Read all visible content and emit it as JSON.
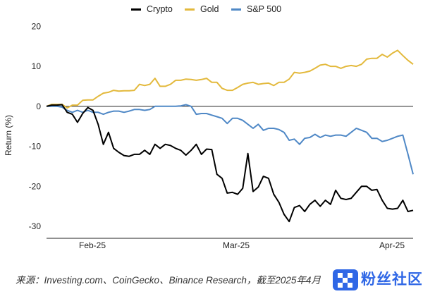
{
  "chart_data": {
    "type": "line",
    "title": "",
    "xlabel": "",
    "ylabel": "Return (%)",
    "ylim": [
      -33,
      22
    ],
    "x_tick_labels": [
      "Feb-25",
      "Mar-25",
      "Apr-25"
    ],
    "y_ticks": [
      20,
      10,
      0,
      -10,
      -20,
      -30
    ],
    "legend_position": "top-center",
    "grid": false,
    "zero_line": true,
    "series": [
      {
        "name": "Crypto",
        "color": "#000000",
        "values": [
          0,
          0.3,
          0.3,
          0.4,
          -1.5,
          -2,
          -4,
          -1.8,
          -0.3,
          -1,
          -4.5,
          -9.5,
          -6.5,
          -10.5,
          -11.5,
          -12.3,
          -12.5,
          -12,
          -12,
          -11,
          -12,
          -9.5,
          -10.5,
          -9.5,
          -9.8,
          -10.5,
          -11,
          -12.2,
          -11,
          -9.5,
          -12,
          -10.7,
          -10.8,
          -17,
          -18,
          -21.7,
          -21.5,
          -22,
          -20.5,
          -11.8,
          -21.3,
          -20.2,
          -17.5,
          -18,
          -22,
          -24,
          -27,
          -28.8,
          -25.3,
          -24.8,
          -26.3,
          -24.5,
          -23.5,
          -25,
          -23.5,
          -24.5,
          -21,
          -23,
          -23.3,
          -23,
          -21.5,
          -20,
          -20,
          -21,
          -20.8,
          -23.5,
          -25.5,
          -25.7,
          -25.5,
          -23.5,
          -26.3,
          -26
        ]
      },
      {
        "name": "Gold",
        "color": "#e3b93c",
        "values": [
          0,
          0.5,
          0.5,
          0.5,
          -0.4,
          0.3,
          0.3,
          1.5,
          1.6,
          1.6,
          2.5,
          3.3,
          3.5,
          4,
          3.8,
          3.9,
          3.9,
          4,
          5.5,
          5.2,
          5.5,
          7,
          5,
          5,
          5.5,
          6.5,
          6.5,
          6.8,
          6.7,
          6.5,
          6.7,
          7,
          6,
          6,
          4.5,
          4,
          4,
          4.7,
          5.5,
          5.8,
          6,
          5.5,
          5.7,
          5.8,
          5.2,
          6,
          6,
          6.8,
          8.5,
          8.3,
          8.5,
          8.8,
          9.5,
          10.3,
          10.5,
          10,
          10,
          9.5,
          10,
          10.2,
          10,
          10.5,
          11.8,
          12,
          12,
          13,
          12.3,
          13.3,
          14,
          12.7,
          11.5,
          10.5
        ]
      },
      {
        "name": "S&P 500",
        "color": "#4f88c6",
        "values": [
          0,
          0,
          0,
          -0.2,
          -1,
          -1.5,
          -1,
          -1.5,
          -1,
          -1.5,
          -1.5,
          -2,
          -1.5,
          -1.2,
          -1.2,
          -1.5,
          -1.2,
          -0.8,
          -0.8,
          -1,
          -0.8,
          0,
          0,
          0,
          0,
          0,
          0.1,
          0.4,
          0,
          -2,
          -1.8,
          -1.8,
          -2.2,
          -2.6,
          -3,
          -4.3,
          -3,
          -3,
          -3.5,
          -4.5,
          -5.5,
          -4.5,
          -6,
          -5.5,
          -5.5,
          -5.8,
          -6.5,
          -8.5,
          -8.2,
          -9.5,
          -8,
          -7.8,
          -7,
          -7.8,
          -7.2,
          -7.5,
          -7.2,
          -7.2,
          -7.5,
          -6.5,
          -5.5,
          -6,
          -6.5,
          -8,
          -8,
          -8.8,
          -8.5,
          -8,
          -7.5,
          -7.2,
          -12,
          -17
        ]
      }
    ]
  },
  "footer": {
    "source_text": "来源：Investing.com、CoinGecko、Binance Research，截至2025年4月",
    "watermark_text": "粉丝社区"
  }
}
